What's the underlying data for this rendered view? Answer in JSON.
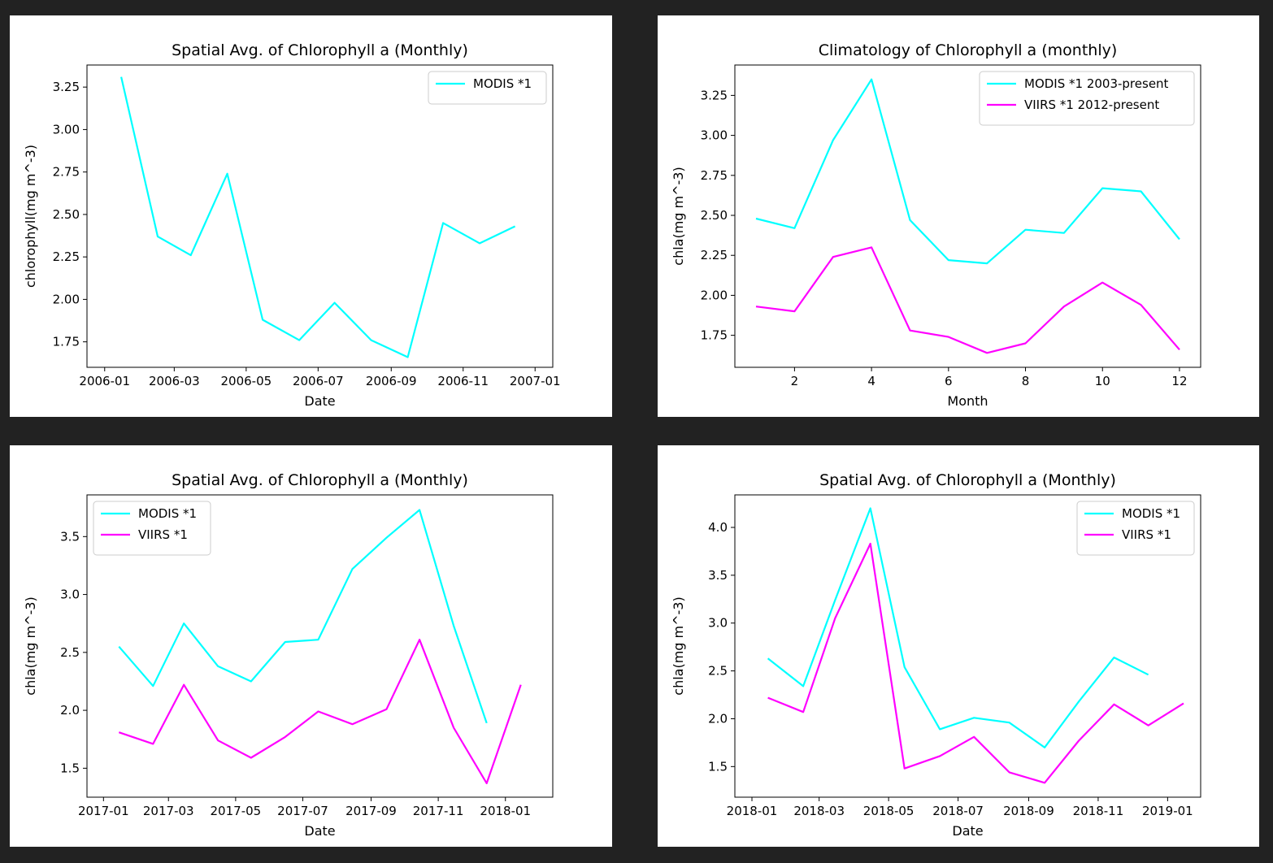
{
  "chart_data": [
    {
      "type": "line",
      "title": "Spatial Avg. of Chlorophyll a  (Monthly)",
      "xlabel": "Date",
      "ylabel": "chlorophyll(mg m^-3)",
      "x_type": "date",
      "xlim": [
        "2005-12-17",
        "2007-01-16"
      ],
      "ylim": [
        1.6,
        3.38
      ],
      "xticks": [
        "2006-01",
        "2006-03",
        "2006-05",
        "2006-07",
        "2006-09",
        "2006-11",
        "2007-01"
      ],
      "yticks": [
        "1.75",
        "2.00",
        "2.25",
        "2.50",
        "2.75",
        "3.00",
        "3.25"
      ],
      "grid": false,
      "legend": "top-right",
      "series": [
        {
          "name": "MODIS *1",
          "color": "#00ffff",
          "x": [
            "2006-01-15",
            "2006-02-15",
            "2006-03-15",
            "2006-04-15",
            "2006-05-15",
            "2006-06-15",
            "2006-07-15",
            "2006-08-15",
            "2006-09-15",
            "2006-10-15",
            "2006-11-15",
            "2006-12-15"
          ],
          "y": [
            3.31,
            2.37,
            2.26,
            2.74,
            1.88,
            1.76,
            1.98,
            1.76,
            1.66,
            2.45,
            2.33,
            2.43
          ]
        }
      ]
    },
    {
      "type": "line",
      "title": "Climatology of Chlorophyll a  (monthly)",
      "xlabel": "Month",
      "ylabel": "chla(mg m^-3)",
      "x_type": "number",
      "xlim": [
        0.45,
        12.55
      ],
      "ylim": [
        1.55,
        3.44
      ],
      "xticks": [
        "2",
        "4",
        "6",
        "8",
        "10",
        "12"
      ],
      "yticks": [
        "1.75",
        "2.00",
        "2.25",
        "2.50",
        "2.75",
        "3.00",
        "3.25"
      ],
      "grid": false,
      "legend": "top-right",
      "series": [
        {
          "name": "MODIS *1 2003-present",
          "color": "#00ffff",
          "x": [
            1,
            2,
            3,
            4,
            5,
            6,
            7,
            8,
            9,
            10,
            11,
            12
          ],
          "y": [
            2.48,
            2.42,
            2.97,
            3.35,
            2.47,
            2.22,
            2.2,
            2.41,
            2.39,
            2.67,
            2.65,
            2.35
          ]
        },
        {
          "name": "VIIRS *1 2012-present",
          "color": "#ff00ff",
          "x": [
            1,
            2,
            3,
            4,
            5,
            6,
            7,
            8,
            9,
            10,
            11,
            12
          ],
          "y": [
            1.93,
            1.9,
            2.24,
            2.3,
            1.78,
            1.74,
            1.64,
            1.7,
            1.93,
            2.08,
            1.94,
            1.66
          ]
        }
      ]
    },
    {
      "type": "line",
      "title": "Spatial Avg. of Chlorophyll a  (Monthly)",
      "xlabel": "Date",
      "ylabel": "chla(mg m^-3)",
      "x_type": "date",
      "xlim": [
        "2016-12-17",
        "2018-02-13"
      ],
      "ylim": [
        1.25,
        3.86
      ],
      "xticks": [
        "2017-01",
        "2017-03",
        "2017-05",
        "2017-07",
        "2017-09",
        "2017-11",
        "2018-01"
      ],
      "yticks": [
        "1.5",
        "2.0",
        "2.5",
        "3.0",
        "3.5"
      ],
      "grid": false,
      "legend": "top-left",
      "series": [
        {
          "name": "MODIS *1",
          "color": "#00ffff",
          "x": [
            "2017-01-15",
            "2017-02-15",
            "2017-03-15",
            "2017-04-15",
            "2017-05-15",
            "2017-06-15",
            "2017-07-15",
            "2017-08-15",
            "2017-09-15",
            "2017-10-15",
            "2017-11-15",
            "2017-12-15"
          ],
          "y": [
            2.55,
            2.21,
            2.75,
            2.38,
            2.25,
            2.59,
            2.61,
            3.22,
            3.49,
            3.73,
            2.73,
            1.89
          ]
        },
        {
          "name": "VIIRS *1",
          "color": "#ff00ff",
          "x": [
            "2017-01-15",
            "2017-02-15",
            "2017-03-15",
            "2017-04-15",
            "2017-05-15",
            "2017-06-15",
            "2017-07-15",
            "2017-08-15",
            "2017-09-15",
            "2017-10-15",
            "2017-11-15",
            "2017-12-15",
            "2018-01-15"
          ],
          "y": [
            1.81,
            1.71,
            2.22,
            1.74,
            1.59,
            1.77,
            1.99,
            1.88,
            2.01,
            2.61,
            1.85,
            1.37,
            2.22
          ]
        }
      ]
    },
    {
      "type": "line",
      "title": "Spatial Avg. of Chlorophyll a  (Monthly)",
      "xlabel": "Date",
      "ylabel": "chla(mg m^-3)",
      "x_type": "date",
      "xlim": [
        "2017-12-17",
        "2019-01-30"
      ],
      "ylim": [
        1.18,
        4.34
      ],
      "xticks": [
        "2018-01",
        "2018-03",
        "2018-05",
        "2018-07",
        "2018-09",
        "2018-11",
        "2019-01"
      ],
      "yticks": [
        "1.5",
        "2.0",
        "2.5",
        "3.0",
        "3.5",
        "4.0"
      ],
      "grid": false,
      "legend": "top-right",
      "series": [
        {
          "name": "MODIS *1",
          "color": "#00ffff",
          "x": [
            "2018-01-15",
            "2018-02-15",
            "2018-03-15",
            "2018-04-15",
            "2018-05-15",
            "2018-06-15",
            "2018-07-15",
            "2018-08-15",
            "2018-09-15",
            "2018-10-15",
            "2018-11-15",
            "2018-12-15"
          ],
          "y": [
            2.63,
            2.34,
            3.24,
            4.2,
            2.54,
            1.89,
            2.01,
            1.96,
            1.7,
            2.18,
            2.64,
            2.46
          ]
        },
        {
          "name": "VIIRS *1",
          "color": "#ff00ff",
          "x": [
            "2018-01-15",
            "2018-02-15",
            "2018-03-15",
            "2018-04-15",
            "2018-05-15",
            "2018-06-15",
            "2018-07-15",
            "2018-08-15",
            "2018-09-15",
            "2018-10-15",
            "2018-11-15",
            "2018-12-15",
            "2019-01-15"
          ],
          "y": [
            2.22,
            2.07,
            3.05,
            3.83,
            1.48,
            1.61,
            1.81,
            1.44,
            1.33,
            1.77,
            2.15,
            1.93,
            2.16
          ]
        }
      ]
    }
  ]
}
